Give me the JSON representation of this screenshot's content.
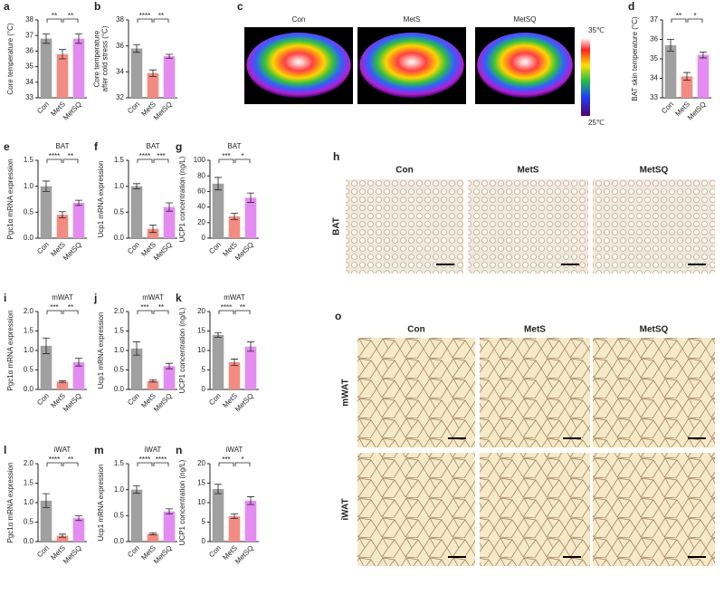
{
  "chart_data": [
    {
      "type": "bar",
      "letter": "a",
      "ylabel": "Core temperature (°C)",
      "categories": [
        "Con",
        "MetS",
        "MetSQ"
      ],
      "values": [
        36.8,
        35.8,
        36.8
      ],
      "errors": [
        0.3,
        0.3,
        0.3
      ],
      "colors": [
        "#a0a0a0",
        "#f28b82",
        "#e48cf2"
      ],
      "ylim": [
        33,
        38
      ],
      "yticks": [
        33,
        34,
        35,
        36,
        37,
        38
      ],
      "significance": [
        "**",
        "**"
      ]
    },
    {
      "type": "bar",
      "letter": "b",
      "ylabel": [
        "Core temperature",
        "after cold stress (°C)"
      ],
      "categories": [
        "Con",
        "MetS",
        "MetSQ"
      ],
      "values": [
        35.8,
        33.9,
        35.2
      ],
      "errors": [
        0.3,
        0.25,
        0.15
      ],
      "colors": [
        "#a0a0a0",
        "#f28b82",
        "#e48cf2"
      ],
      "ylim": [
        32,
        38
      ],
      "yticks": [
        32,
        34,
        36,
        38
      ],
      "significance": [
        "****",
        "**"
      ]
    },
    {
      "type": "bar",
      "letter": "d",
      "ylabel": "BAT skin temperature (°C)",
      "categories": [
        "Con",
        "MetS",
        "MetSQ"
      ],
      "values": [
        35.7,
        34.1,
        35.2
      ],
      "errors": [
        0.3,
        0.2,
        0.15
      ],
      "colors": [
        "#a0a0a0",
        "#f28b82",
        "#e48cf2"
      ],
      "ylim": [
        33,
        37
      ],
      "yticks": [
        33,
        34,
        35,
        36,
        37
      ],
      "significance": [
        "**",
        "*"
      ]
    },
    {
      "type": "bar",
      "letter": "e",
      "title": "BAT",
      "ylabel": "Pgc1α mRNA expression",
      "categories": [
        "Con",
        "MetS",
        "MetSQ"
      ],
      "values": [
        1.0,
        0.45,
        0.68
      ],
      "errors": [
        0.1,
        0.06,
        0.05
      ],
      "colors": [
        "#a0a0a0",
        "#f28b82",
        "#e48cf2"
      ],
      "ylim": [
        0,
        1.5
      ],
      "yticks": [
        {
          "value": 0,
          "label": "0.0"
        },
        0.5,
        {
          "value": 1,
          "label": "1.0"
        },
        1.5
      ],
      "significance": [
        "****",
        "**"
      ]
    },
    {
      "type": "bar",
      "letter": "f",
      "title": "BAT",
      "ylabel": "Ucp1 mRNA expression",
      "categories": [
        "Con",
        "MetS",
        "MetSQ"
      ],
      "values": [
        1.0,
        0.18,
        0.6
      ],
      "errors": [
        0.05,
        0.07,
        0.08
      ],
      "colors": [
        "#a0a0a0",
        "#f28b82",
        "#e48cf2"
      ],
      "ylim": [
        0,
        1.5
      ],
      "yticks": [
        {
          "value": 0,
          "label": "0.0"
        },
        0.5,
        {
          "value": 1,
          "label": "1.0"
        },
        1.5
      ],
      "significance": [
        "****",
        "***"
      ]
    },
    {
      "type": "bar",
      "letter": "g",
      "title": "BAT",
      "ylabel": "UCP1 concentration (ng/L)",
      "categories": [
        "Con",
        "MetS",
        "MetSQ"
      ],
      "values": [
        70,
        28,
        52
      ],
      "errors": [
        8,
        4,
        6
      ],
      "colors": [
        "#a0a0a0",
        "#f28b82",
        "#e48cf2"
      ],
      "ylim": [
        0,
        100
      ],
      "yticks": [
        0,
        20,
        40,
        60,
        80,
        100
      ],
      "significance": [
        "***",
        "*"
      ]
    },
    {
      "type": "bar",
      "letter": "i",
      "title": "mWAT",
      "ylabel": "Pgc1α mRNA expression",
      "categories": [
        "Con",
        "MetS",
        "MetSQ"
      ],
      "values": [
        1.12,
        0.2,
        0.7
      ],
      "errors": [
        0.2,
        0.02,
        0.1
      ],
      "colors": [
        "#a0a0a0",
        "#f28b82",
        "#e48cf2"
      ],
      "ylim": [
        0,
        2.0
      ],
      "yticks": [
        {
          "value": 0,
          "label": "0.0"
        },
        0.5,
        {
          "value": 1,
          "label": "1.0"
        },
        1.5,
        {
          "value": 2,
          "label": "2.0"
        }
      ],
      "significance": [
        "***",
        "**"
      ]
    },
    {
      "type": "bar",
      "letter": "j",
      "title": "mWAT",
      "ylabel": "Ucp1 mRNA expression",
      "categories": [
        "Con",
        "MetS",
        "MetSQ"
      ],
      "values": [
        1.05,
        0.22,
        0.6
      ],
      "errors": [
        0.17,
        0.03,
        0.07
      ],
      "colors": [
        "#a0a0a0",
        "#f28b82",
        "#e48cf2"
      ],
      "ylim": [
        0,
        2.0
      ],
      "yticks": [
        {
          "value": 0,
          "label": "0.0"
        },
        0.5,
        {
          "value": 1,
          "label": "1.0"
        },
        1.5,
        {
          "value": 2,
          "label": "2.0"
        }
      ],
      "significance": [
        "***",
        "**"
      ]
    },
    {
      "type": "bar",
      "letter": "k",
      "title": "mWAT",
      "ylabel": "UCP1 concentration (ng/L)",
      "categories": [
        "Con",
        "MetS",
        "MetSQ"
      ],
      "values": [
        14,
        7,
        11
      ],
      "errors": [
        0.6,
        0.8,
        1.2
      ],
      "colors": [
        "#a0a0a0",
        "#f28b82",
        "#e48cf2"
      ],
      "ylim": [
        0,
        20
      ],
      "yticks": [
        0,
        5,
        10,
        15,
        20
      ],
      "significance": [
        "****",
        "**"
      ]
    },
    {
      "type": "bar",
      "letter": "l",
      "title": "iWAT",
      "ylabel": "Pgc1α mRNA expression",
      "categories": [
        "Con",
        "MetS",
        "MetSQ"
      ],
      "values": [
        1.05,
        0.15,
        0.6
      ],
      "errors": [
        0.18,
        0.04,
        0.06
      ],
      "colors": [
        "#a0a0a0",
        "#f28b82",
        "#e48cf2"
      ],
      "ylim": [
        0,
        2.0
      ],
      "yticks": [
        {
          "value": 0,
          "label": "0.0"
        },
        0.5,
        {
          "value": 1,
          "label": "1.0"
        },
        1.5,
        {
          "value": 2,
          "label": "2.0"
        }
      ],
      "significance": [
        "****",
        "**"
      ]
    },
    {
      "type": "bar",
      "letter": "m",
      "title": "iWAT",
      "ylabel": "Ucp1 mRNA expression",
      "categories": [
        "Con",
        "MetS",
        "MetSQ"
      ],
      "values": [
        1.0,
        0.15,
        0.58
      ],
      "errors": [
        0.07,
        0.02,
        0.05
      ],
      "colors": [
        "#a0a0a0",
        "#f28b82",
        "#e48cf2"
      ],
      "ylim": [
        0,
        1.5
      ],
      "yticks": [
        {
          "value": 0,
          "label": "0.0"
        },
        0.5,
        {
          "value": 1,
          "label": "1.0"
        },
        1.5
      ],
      "significance": [
        "****",
        "****"
      ]
    },
    {
      "type": "bar",
      "letter": "n",
      "title": "iWAT",
      "ylabel": "UCP1 concentration (ng/L)",
      "categories": [
        "Con",
        "MetS",
        "MetSQ"
      ],
      "values": [
        13.5,
        6.5,
        10.5
      ],
      "errors": [
        1.2,
        0.6,
        1.0
      ],
      "colors": [
        "#a0a0a0",
        "#f28b82",
        "#e48cf2"
      ],
      "ylim": [
        0,
        20
      ],
      "yticks": [
        0,
        5,
        10,
        15,
        20
      ],
      "significance": [
        "***",
        "*"
      ]
    }
  ],
  "images": {
    "c": {
      "letter": "c",
      "labels": [
        "Con",
        "MetS",
        "MetSQ"
      ],
      "scale": [
        "35℃",
        "25℃"
      ]
    },
    "h": {
      "letter": "h",
      "columns": [
        "Con",
        "MetS",
        "MetSQ"
      ],
      "rows": [
        "BAT"
      ]
    },
    "o": {
      "letter": "o",
      "columns": [
        "Con",
        "MetS",
        "MetSQ"
      ],
      "rows": [
        "mWAT",
        "iWAT"
      ]
    }
  }
}
